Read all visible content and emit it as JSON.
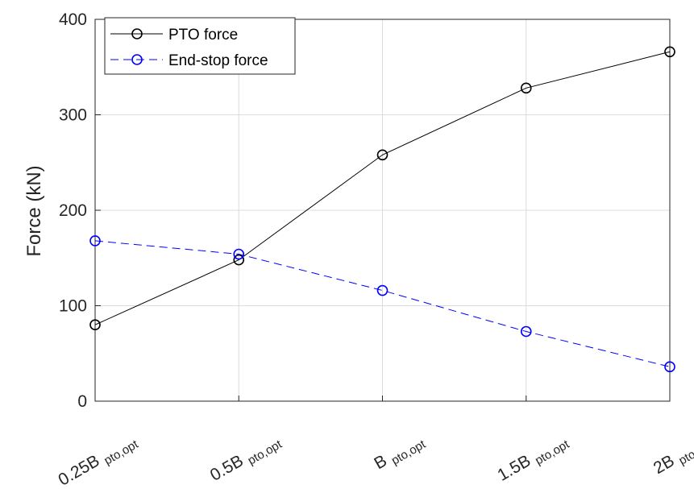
{
  "chart_data": {
    "type": "line",
    "categories": [
      {
        "main": "0.25B",
        "sub": "pto,opt"
      },
      {
        "main": "0.5B",
        "sub": "pto,opt"
      },
      {
        "main": "B",
        "sub": "pto,opt"
      },
      {
        "main": "1.5B",
        "sub": "pto,opt"
      },
      {
        "main": "2B",
        "sub": "pto,opt"
      }
    ],
    "series": [
      {
        "name": "PTO force",
        "values": [
          80,
          148,
          258,
          328,
          366
        ],
        "color": "#000000",
        "line_style": "solid",
        "marker": "circle"
      },
      {
        "name": "End-stop force",
        "values": [
          168,
          154,
          116,
          73,
          36
        ],
        "color": "#0000ff",
        "line_style": "dashed",
        "marker": "circle"
      }
    ],
    "ylabel": "Force (kN)",
    "xlabel": "",
    "ylim": [
      0,
      400
    ],
    "yticks": [
      0,
      100,
      200,
      300,
      400
    ],
    "grid": true,
    "legend_position": "top-left"
  }
}
